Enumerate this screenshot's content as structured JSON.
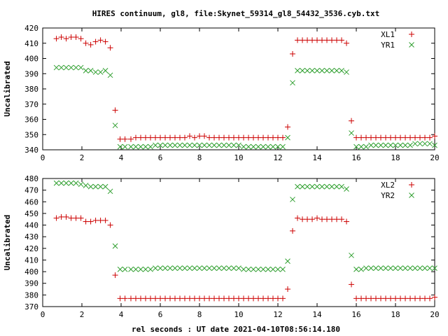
{
  "title": "HIRES continuum, gl8, file:Skynet_59314_gl8_54432_3536.cyb.txt",
  "xlabel": "rel seconds : UT date 2021-04-10T08:56:14.180",
  "chart_data": [
    {
      "type": "scatter",
      "ylabel": "Uncalibrated",
      "xlim": [
        0,
        20
      ],
      "ylim": [
        340,
        420
      ],
      "xticks": [
        "0",
        "2",
        "4",
        "6",
        "8",
        "10",
        "12",
        "14",
        "16",
        "18",
        "20"
      ],
      "yticks": [
        "340",
        "350",
        "360",
        "370",
        "380",
        "390",
        "400",
        "410",
        "420"
      ],
      "legend_position": "top-right",
      "grid": false,
      "x": [
        0.7,
        0.95,
        1.2,
        1.45,
        1.7,
        1.95,
        2.2,
        2.45,
        2.7,
        2.95,
        3.2,
        3.45,
        3.7,
        3.95,
        4.2,
        4.5,
        4.75,
        5.0,
        5.25,
        5.5,
        5.75,
        6.0,
        6.25,
        6.5,
        6.75,
        7.0,
        7.25,
        7.5,
        7.75,
        8.0,
        8.25,
        8.5,
        8.75,
        9.0,
        9.25,
        9.5,
        9.75,
        10.0,
        10.25,
        10.5,
        10.75,
        11.0,
        11.25,
        11.5,
        11.75,
        12.0,
        12.25,
        12.5,
        12.75,
        13.0,
        13.25,
        13.5,
        13.75,
        14.0,
        14.25,
        14.5,
        14.75,
        15.0,
        15.25,
        15.5,
        15.75,
        16.0,
        16.25,
        16.5,
        16.75,
        17.0,
        17.25,
        17.5,
        17.75,
        18.0,
        18.25,
        18.5,
        18.75,
        19.0,
        19.25,
        19.5,
        19.75,
        20.0
      ],
      "series": [
        {
          "name": "XL1",
          "marker": "+",
          "color": "#cc0000",
          "values": [
            413,
            414,
            413,
            414,
            414,
            413,
            410,
            409,
            411,
            412,
            411,
            407,
            366,
            347,
            347,
            347,
            348,
            348,
            348,
            348,
            348,
            348,
            348,
            348,
            348,
            348,
            348,
            349,
            348,
            349,
            349,
            348,
            348,
            348,
            348,
            348,
            348,
            348,
            348,
            348,
            348,
            348,
            348,
            348,
            348,
            348,
            348,
            355,
            403,
            412,
            412,
            412,
            412,
            412,
            412,
            412,
            412,
            412,
            412,
            410,
            359,
            348,
            348,
            348,
            348,
            348,
            348,
            348,
            348,
            348,
            348,
            348,
            348,
            348,
            348,
            348,
            348,
            349
          ]
        },
        {
          "name": "YR1",
          "marker": "x",
          "color": "#2e9e2e",
          "values": [
            394,
            394,
            394,
            394,
            394,
            394,
            392,
            392,
            391,
            391,
            392,
            389,
            356,
            342,
            342,
            342,
            342,
            342,
            342,
            342,
            343,
            343,
            343,
            343,
            343,
            343,
            343,
            343,
            343,
            343,
            343,
            343,
            343,
            343,
            343,
            343,
            343,
            343,
            342,
            342,
            342,
            342,
            342,
            342,
            342,
            342,
            342,
            348,
            384,
            392,
            392,
            392,
            392,
            392,
            392,
            392,
            392,
            392,
            392,
            391,
            351,
            342,
            342,
            342,
            343,
            343,
            343,
            343,
            343,
            343,
            343,
            343,
            343,
            344,
            344,
            344,
            344,
            343
          ]
        }
      ]
    },
    {
      "type": "scatter",
      "ylabel": "Uncalibrated",
      "xlim": [
        0,
        20
      ],
      "ylim": [
        370,
        480
      ],
      "xticks": [
        "0",
        "2",
        "4",
        "6",
        "8",
        "10",
        "12",
        "14",
        "16",
        "18",
        "20"
      ],
      "yticks": [
        "370",
        "380",
        "390",
        "400",
        "410",
        "420",
        "430",
        "440",
        "450",
        "460",
        "470",
        "480"
      ],
      "legend_position": "top-right",
      "grid": false,
      "x": [
        0.7,
        0.95,
        1.2,
        1.45,
        1.7,
        1.95,
        2.2,
        2.45,
        2.7,
        2.95,
        3.2,
        3.45,
        3.7,
        3.95,
        4.2,
        4.5,
        4.75,
        5.0,
        5.25,
        5.5,
        5.75,
        6.0,
        6.25,
        6.5,
        6.75,
        7.0,
        7.25,
        7.5,
        7.75,
        8.0,
        8.25,
        8.5,
        8.75,
        9.0,
        9.25,
        9.5,
        9.75,
        10.0,
        10.25,
        10.5,
        10.75,
        11.0,
        11.25,
        11.5,
        11.75,
        12.0,
        12.25,
        12.5,
        12.75,
        13.0,
        13.25,
        13.5,
        13.75,
        14.0,
        14.25,
        14.5,
        14.75,
        15.0,
        15.25,
        15.5,
        15.75,
        16.0,
        16.25,
        16.5,
        16.75,
        17.0,
        17.25,
        17.5,
        17.75,
        18.0,
        18.25,
        18.5,
        18.75,
        19.0,
        19.25,
        19.5,
        19.75,
        20.0
      ],
      "series": [
        {
          "name": "XL2",
          "marker": "+",
          "color": "#cc0000",
          "values": [
            446,
            447,
            447,
            446,
            446,
            446,
            443,
            443,
            444,
            444,
            444,
            440,
            397,
            377,
            377,
            377,
            377,
            377,
            377,
            377,
            377,
            377,
            377,
            377,
            377,
            377,
            377,
            377,
            377,
            377,
            377,
            377,
            377,
            377,
            377,
            377,
            377,
            377,
            377,
            377,
            377,
            377,
            377,
            377,
            377,
            377,
            377,
            385,
            435,
            446,
            445,
            445,
            445,
            446,
            445,
            445,
            445,
            445,
            445,
            443,
            389,
            377,
            377,
            377,
            377,
            377,
            377,
            377,
            377,
            377,
            377,
            377,
            377,
            377,
            377,
            377,
            377,
            378
          ]
        },
        {
          "name": "YR2",
          "marker": "x",
          "color": "#2e9e2e",
          "values": [
            476,
            476,
            476,
            476,
            476,
            475,
            474,
            473,
            473,
            473,
            473,
            469,
            422,
            402,
            402,
            402,
            402,
            402,
            402,
            402,
            403,
            403,
            403,
            403,
            403,
            403,
            403,
            403,
            403,
            403,
            403,
            403,
            403,
            403,
            403,
            403,
            403,
            403,
            402,
            402,
            402,
            402,
            402,
            402,
            402,
            402,
            402,
            409,
            462,
            473,
            473,
            473,
            473,
            473,
            473,
            473,
            473,
            473,
            473,
            471,
            414,
            402,
            402,
            403,
            403,
            403,
            403,
            403,
            403,
            403,
            403,
            403,
            403,
            403,
            403,
            403,
            403,
            403
          ]
        }
      ]
    }
  ]
}
